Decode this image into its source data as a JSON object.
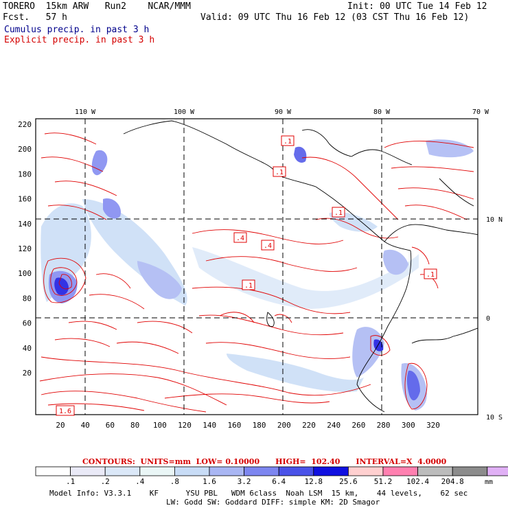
{
  "header": {
    "model": "TORERO  15km ARW   Run2    NCAR/MMM",
    "fcst": "Fcst.   57 h",
    "init": "Init: 00 UTC Tue 14 Feb 12",
    "valid": "Valid: 09 UTC Thu 16 Feb 12 (03 CST Thu 16 Feb 12)",
    "cumulus": "Cumulus precip. in past 3 h",
    "explicit": "Explicit precip. in past 3 h"
  },
  "axes": {
    "top_lon_labels": [
      "110 W",
      "100 W",
      "90 W",
      "80 W",
      "70 W"
    ],
    "right_lat_labels": [
      "10 N",
      "0",
      "10 S"
    ],
    "y_grid_labels": [
      "220",
      "200",
      "180",
      "160",
      "140",
      "120",
      "100",
      "80",
      "60",
      "40",
      "20"
    ],
    "x_grid_labels": [
      "20",
      "40",
      "60",
      "80",
      "100",
      "120",
      "140",
      "160",
      "180",
      "200",
      "220",
      "240",
      "260",
      "280",
      "300",
      "320"
    ]
  },
  "contour_labels": [
    ".1",
    ".4",
    ".4",
    ".1",
    ".1",
    ".1",
    "1.6",
    ".1"
  ],
  "contours_info": "CONTOURS:  UNITS=mm  LOW= 0.10000      HIGH=  102.40      INTERVAL=X  4.0000",
  "legend": {
    "values": [
      ".1",
      ".2",
      ".4",
      ".8",
      "1.6",
      "3.2",
      "6.4",
      "12.8",
      "25.6",
      "51.2",
      "102.4",
      "204.8"
    ],
    "unit": "mm",
    "colors": [
      "#ffffff",
      "#eaeaf7",
      "#dbe8f8",
      "#eaf6f6",
      "#c8dcf6",
      "#a9b6f3",
      "#7d86f0",
      "#4a52e8",
      "#1010e0",
      "#ffd0d0",
      "#ff80b0",
      "#bcbcbc",
      "#8c8c8c",
      "#e0b0f5"
    ]
  },
  "footer": {
    "line1": "Model Info: V3.3.1    KF      YSU PBL   WDM 6class  Noah LSM  15 km,    44 levels,    62 sec",
    "line2": "LW: Godd SW: Goddard DIFF: simple KM: 2D Smagor"
  }
}
